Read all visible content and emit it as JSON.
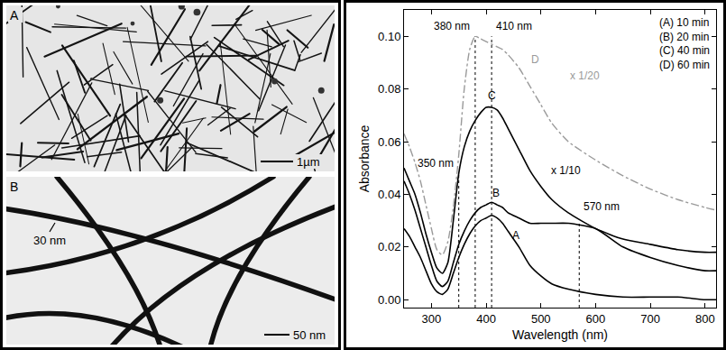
{
  "micrographs": [
    {
      "label": "A",
      "scale_bar": "1µm"
    },
    {
      "label": "B",
      "scale_bar": "50 nm",
      "feature_label": "30 nm"
    }
  ],
  "chart_data": {
    "type": "line",
    "x_label": "Wavelength (nm)",
    "y_label": "Absorbance",
    "xlim": [
      250,
      820
    ],
    "ylim": [
      -0.003,
      0.11
    ],
    "xticks": [
      300,
      400,
      500,
      600,
      700,
      800
    ],
    "yticks": [
      {
        "value": 0,
        "label": "0.00"
      },
      {
        "value": 0.02,
        "label": "0.02"
      },
      {
        "value": 0.04,
        "label": "0.04"
      },
      {
        "value": 0.06,
        "label": "0.06"
      },
      {
        "value": 0.08,
        "label": "0.08"
      },
      {
        "value": 0.1,
        "label": "0.10"
      }
    ],
    "grid": false,
    "legend": "upper right",
    "x": [
      250,
      260,
      270,
      280,
      290,
      300,
      310,
      320,
      330,
      340,
      350,
      360,
      370,
      380,
      390,
      400,
      410,
      420,
      430,
      440,
      460,
      480,
      500,
      520,
      550,
      600,
      650,
      700,
      750,
      800,
      820
    ],
    "series": [
      {
        "name": "A",
        "legend_label": "(A) 10 min",
        "color": "#000000",
        "line_style": "solid",
        "values": [
          0.027,
          0.024,
          0.02,
          0.016,
          0.011,
          0.006,
          0.003,
          0.002,
          0.004,
          0.01,
          0.016,
          0.021,
          0.025,
          0.028,
          0.03,
          0.031,
          0.032,
          0.031,
          0.029,
          0.026,
          0.02,
          0.013,
          0.009,
          0.006,
          0.004,
          0.002,
          0.001,
          0.001,
          0.001,
          0.0,
          0.0
        ]
      },
      {
        "name": "B",
        "legend_label": "(B) 20 min",
        "color": "#000000",
        "line_style": "solid",
        "values": [
          0.045,
          0.04,
          0.034,
          0.027,
          0.02,
          0.013,
          0.007,
          0.005,
          0.007,
          0.014,
          0.021,
          0.026,
          0.03,
          0.033,
          0.035,
          0.036,
          0.037,
          0.036,
          0.035,
          0.033,
          0.031,
          0.029,
          0.029,
          0.029,
          0.029,
          0.027,
          0.02,
          0.016,
          0.013,
          0.011,
          0.011
        ]
      },
      {
        "name": "C",
        "legend_label": "(C) 40 min",
        "color": "#000000",
        "line_style": "solid",
        "scale_note": "x 1/10",
        "values": [
          0.05,
          0.045,
          0.04,
          0.033,
          0.025,
          0.018,
          0.012,
          0.01,
          0.014,
          0.03,
          0.048,
          0.058,
          0.064,
          0.068,
          0.071,
          0.073,
          0.073,
          0.072,
          0.069,
          0.065,
          0.057,
          0.049,
          0.043,
          0.038,
          0.033,
          0.027,
          0.023,
          0.021,
          0.019,
          0.018,
          0.018
        ]
      },
      {
        "name": "D",
        "legend_label": "(D) 60 min",
        "color": "#9a9a9a",
        "line_style": "dashdot",
        "scale_note": "x 1/20",
        "values": [
          0.063,
          0.058,
          0.052,
          0.045,
          0.036,
          0.027,
          0.019,
          0.017,
          0.022,
          0.035,
          0.055,
          0.08,
          0.095,
          0.1,
          0.099,
          0.098,
          0.097,
          0.096,
          0.095,
          0.093,
          0.088,
          0.081,
          0.074,
          0.067,
          0.06,
          0.053,
          0.047,
          0.042,
          0.038,
          0.035,
          0.034
        ]
      }
    ],
    "peak_markers": [
      {
        "x": 350,
        "y": 0.048,
        "label": "350 nm"
      },
      {
        "x": 380,
        "y": 0.1,
        "label": "380 nm"
      },
      {
        "x": 410,
        "y": 0.1,
        "label": "410 nm"
      },
      {
        "x": 570,
        "y": 0.029,
        "label": "570 nm"
      }
    ]
  }
}
